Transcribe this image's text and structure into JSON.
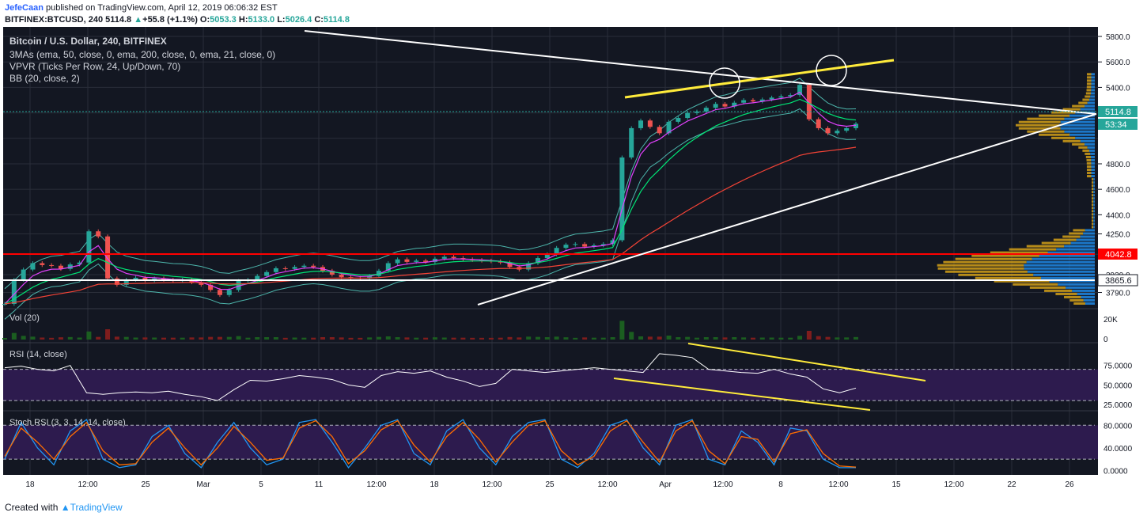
{
  "header": {
    "author": "JefeCaan",
    "published_text": "published on TradingView.com, April 12, 2019 06:06:32 EST",
    "symbol": "BITFINEX:BTCUSD, 240",
    "last": "5114.8",
    "change_arrow": "▲",
    "change": "+55.8 (+1.1%)",
    "ohlc": {
      "o_label": "O:",
      "o": "5053.3",
      "h_label": "H:",
      "h": "5133.0",
      "l_label": "L:",
      "l": "5026.4",
      "c_label": "C:",
      "c": "5114.8"
    }
  },
  "legend": {
    "title": "Bitcoin / U.S. Dollar, 240, BITFINEX",
    "mas": "3MAs (ema, 50, close, 0, ema, 200, close, 0, ema, 21, close, 0)",
    "vpvr": "VPVR (Ticks Per Row, 24, Up/Down, 70)",
    "bb": "BB (20, close, 2)"
  },
  "colors": {
    "background": "#131722",
    "up": "#26a69a",
    "down": "#ef5350",
    "trendline": "#ffffff",
    "highlight": "#ffeb3b",
    "support": "#ff0000",
    "vpvr_up": "#d4a017",
    "vpvr_down": "#1e88e5",
    "rsi_band": "#2d1b4e"
  },
  "footer": {
    "created_with": "Created with",
    "brand": "TradingView",
    "logo_icon": "tradingview-logo-icon"
  },
  "chart_data": [
    {
      "type": "line",
      "title": "Bitcoin / U.S. Dollar, 240, BITFINEX",
      "series": [
        {
          "name": "BITFINEX:BTCUSD",
          "values": [
            3700,
            3890,
            3970,
            4020,
            4005,
            4000,
            3975,
            4010,
            4025,
            4270,
            4230,
            3900,
            3850,
            3890,
            3905,
            3885,
            3900,
            3890,
            3880,
            3890,
            3870,
            3850,
            3810,
            3770,
            3810,
            3880,
            3890,
            3920,
            3950,
            3980,
            3975,
            3990,
            4000,
            3990,
            3960,
            3930,
            3910,
            3905,
            3900,
            3920,
            3960,
            4020,
            4050,
            4030,
            4040,
            4030,
            4055,
            4070,
            4060,
            4050,
            4045,
            4040,
            4035,
            4025,
            3990,
            3970,
            4020,
            4060,
            4090,
            4140,
            4165,
            4170,
            4150,
            4160,
            4170,
            4200,
            4850,
            5080,
            5140,
            5090,
            5040,
            5130,
            5160,
            5200,
            5210,
            5240,
            5270,
            5250,
            5280,
            5300,
            5290,
            5305,
            5320,
            5330,
            5340,
            5420,
            5150,
            5080,
            5040,
            5060,
            5080,
            5114.8
          ]
        }
      ],
      "x_labels": [
        "18",
        "12:00",
        "25",
        "Mar",
        "5",
        "11",
        "12:00",
        "18",
        "12:00",
        "25",
        "12:00",
        "Apr",
        "12:00",
        "8",
        "12:00",
        "15",
        "12:00",
        "22",
        "26"
      ],
      "y_ticks": [
        "5800.0",
        "5600.0",
        "5400.0",
        "5200.0",
        "4800.0",
        "4600.0",
        "4400.0",
        "4250.0",
        "4090.0",
        "3930.0",
        "3790.0"
      ],
      "price_tags": [
        {
          "value": "5114.8",
          "kind": "last"
        },
        {
          "value": "53:34",
          "kind": "countdown"
        },
        {
          "value": "4042.8",
          "kind": "support"
        },
        {
          "value": "3865.6",
          "kind": "horizontal-line"
        }
      ],
      "ylim": [
        3700,
        5850
      ],
      "indicators": [
        "EMA 21",
        "EMA 50",
        "EMA 200",
        "Bollinger Bands (20, 2)",
        "VPVR"
      ],
      "support_levels": [
        4042.8,
        3865.6
      ],
      "grid": true
    },
    {
      "type": "bar",
      "title": "Vol (20)",
      "y_ticks": [
        "20K",
        "0"
      ]
    },
    {
      "type": "line",
      "title": "RSI (14, close)",
      "y_ticks": [
        "75.0000",
        "50.0000",
        "25.0000"
      ],
      "ylim": [
        20,
        100
      ],
      "band": [
        30,
        70
      ],
      "series": [
        {
          "name": "RSI",
          "values": [
            72,
            74,
            70,
            68,
            75,
            40,
            38,
            40,
            41,
            40,
            42,
            38,
            35,
            30,
            44,
            56,
            55,
            58,
            62,
            60,
            57,
            50,
            47,
            62,
            67,
            65,
            68,
            60,
            55,
            48,
            52,
            70,
            68,
            66,
            68,
            70,
            72,
            70,
            68,
            66,
            90,
            88,
            85,
            70,
            68,
            66,
            65,
            70,
            64,
            60,
            45,
            40,
            46
          ]
        }
      ]
    },
    {
      "type": "line",
      "title": "Stoch RSI (3, 3, 14, 14, close)",
      "y_ticks": [
        "80.0000",
        "40.0000",
        "0.0000"
      ],
      "ylim": [
        -5,
        100
      ],
      "band": [
        20,
        80
      ],
      "series": [
        {
          "name": "K",
          "values": [
            20,
            85,
            40,
            10,
            70,
            90,
            20,
            5,
            10,
            60,
            80,
            30,
            5,
            50,
            85,
            40,
            10,
            20,
            85,
            90,
            50,
            5,
            40,
            80,
            90,
            30,
            10,
            70,
            90,
            40,
            10,
            60,
            85,
            90,
            20,
            5,
            30,
            80,
            90,
            40,
            10,
            80,
            90,
            20,
            10,
            70,
            50,
            10,
            75,
            70,
            20,
            5,
            5
          ]
        },
        {
          "name": "D",
          "values": [
            25,
            75,
            50,
            20,
            60,
            85,
            35,
            10,
            12,
            50,
            75,
            40,
            10,
            40,
            78,
            50,
            18,
            22,
            75,
            88,
            60,
            12,
            35,
            72,
            88,
            45,
            15,
            60,
            85,
            55,
            15,
            50,
            80,
            88,
            35,
            10,
            25,
            70,
            88,
            50,
            15,
            70,
            88,
            35,
            12,
            60,
            55,
            15,
            65,
            72,
            30,
            8,
            6
          ]
        }
      ]
    }
  ]
}
